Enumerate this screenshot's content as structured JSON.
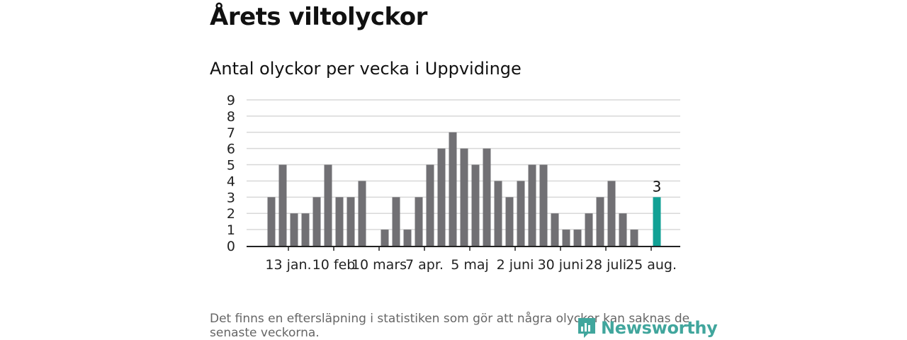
{
  "title": "Årets viltolyckor",
  "subtitle": "Antal olyckor per vecka i Uppvidinge",
  "footnote": "Det finns en eftersläpning i statistiken som gör att några olyckor kan saknas de senaste veckorna.",
  "brand": "Newsworthy",
  "colors": {
    "bar": "#717074",
    "highlight": "#11a195",
    "grid": "#d8d8d8",
    "axis": "#222222",
    "brand": "#41a69d"
  },
  "chart_data": {
    "type": "bar",
    "title": "Antal olyckor per vecka i Uppvidinge",
    "xlabel": "",
    "ylabel": "",
    "ylim": [
      0,
      9
    ],
    "yticks": [
      0,
      1,
      2,
      3,
      4,
      5,
      6,
      7,
      8,
      9
    ],
    "grid": true,
    "x_tick_labels": [
      "13 jan.",
      "10 feb",
      "10 mars",
      "7 apr.",
      "5 maj",
      "2 juni",
      "30 juni",
      "28 juli",
      "25 aug."
    ],
    "x_tick_week_index": [
      2,
      6,
      10,
      14,
      18,
      22,
      26,
      30,
      34
    ],
    "values": [
      3,
      5,
      2,
      2,
      3,
      5,
      3,
      3,
      4,
      0,
      1,
      3,
      1,
      3,
      5,
      6,
      7,
      6,
      5,
      6,
      4,
      3,
      4,
      5,
      5,
      2,
      1,
      1,
      2,
      3,
      4,
      2,
      1,
      0,
      3
    ],
    "highlight_index": 34,
    "data_labels": [
      {
        "index": 34,
        "text": "3"
      }
    ]
  }
}
